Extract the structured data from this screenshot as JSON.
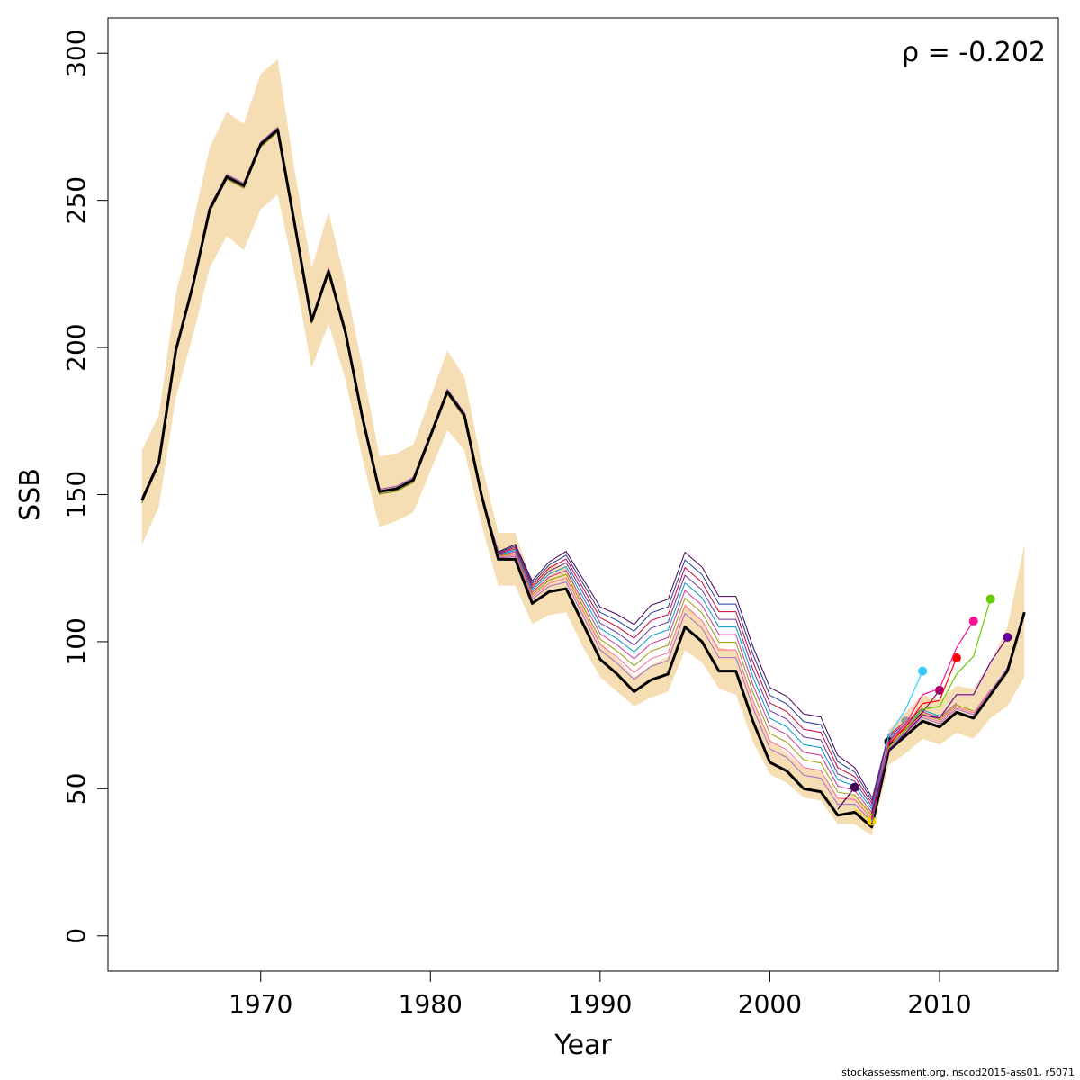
{
  "chart_data": {
    "type": "line",
    "xlabel": "Year",
    "ylabel": "SSB",
    "xlim": [
      1961,
      2017
    ],
    "ylim": [
      -12,
      312
    ],
    "x_ticks": [
      1970,
      1980,
      1990,
      2000,
      2010
    ],
    "y_ticks": [
      0,
      50,
      100,
      150,
      200,
      250,
      300
    ],
    "annotation": "ρ = -0.202",
    "band_color": "#f5deb3",
    "main_color": "#000000",
    "years": [
      1963,
      1964,
      1965,
      1966,
      1967,
      1968,
      1969,
      1970,
      1971,
      1972,
      1973,
      1974,
      1975,
      1976,
      1977,
      1978,
      1979,
      1980,
      1981,
      1982,
      1983,
      1984,
      1985,
      1986,
      1987,
      1988,
      1989,
      1990,
      1991,
      1992,
      1993,
      1994,
      1995,
      1996,
      1997,
      1998,
      1999,
      2000,
      2001,
      2002,
      2003,
      2004,
      2005,
      2006,
      2007,
      2008,
      2009,
      2010,
      2011,
      2012,
      2013,
      2014,
      2015
    ],
    "ssb": [
      148,
      161,
      199,
      221,
      247,
      258,
      255,
      269,
      274,
      242,
      209,
      226,
      205,
      176,
      151,
      152,
      155,
      170,
      185,
      177,
      150,
      128,
      128,
      113,
      117,
      118,
      106,
      94,
      89,
      83,
      87,
      89,
      105,
      100,
      90,
      90,
      73,
      59,
      56,
      50,
      49,
      41,
      42,
      37,
      63,
      68,
      73,
      71,
      76,
      74,
      82,
      90,
      110
    ],
    "upper": [
      165,
      177,
      218,
      242,
      268,
      280,
      276,
      293,
      298,
      260,
      227,
      246,
      222,
      193,
      163,
      164,
      167,
      183,
      199,
      190,
      161,
      137,
      137,
      120,
      126,
      126,
      113,
      100,
      94,
      88,
      92,
      95,
      113,
      107,
      98,
      97,
      80,
      67,
      62,
      57,
      56,
      47,
      48,
      42,
      70,
      76,
      82,
      80,
      85,
      84,
      93,
      105,
      133
    ],
    "lower": [
      133,
      146,
      183,
      204,
      227,
      238,
      233,
      247,
      252,
      225,
      193,
      208,
      189,
      162,
      139,
      141,
      144,
      158,
      172,
      165,
      140,
      119,
      119,
      106,
      109,
      110,
      98,
      88,
      83,
      78,
      81,
      83,
      97,
      93,
      84,
      82,
      66,
      55,
      52,
      47,
      46,
      38,
      38,
      34,
      58,
      62,
      67,
      65,
      69,
      67,
      74,
      78,
      88
    ],
    "peels": [
      {
        "color": "#440154",
        "points": [
          [
            2004,
            43
          ],
          [
            2005,
            50.5
          ]
        ]
      },
      {
        "color": "#ffcc00",
        "points": [
          [
            2005,
            43
          ],
          [
            2006,
            39
          ]
        ]
      },
      {
        "color": "#000000",
        "points": [
          [
            2006,
            38
          ],
          [
            2007,
            66
          ]
        ]
      },
      {
        "color": "#999999",
        "points": [
          [
            2006,
            38.5
          ],
          [
            2007,
            65
          ],
          [
            2008,
            73
          ]
        ]
      },
      {
        "color": "#33ccff",
        "points": [
          [
            2006,
            39
          ],
          [
            2007,
            68
          ],
          [
            2008,
            77
          ],
          [
            2009,
            90
          ]
        ]
      },
      {
        "color": "#990066",
        "points": [
          [
            2006,
            39.5
          ],
          [
            2007,
            64
          ],
          [
            2008,
            70
          ],
          [
            2009,
            76
          ],
          [
            2010,
            83.5
          ]
        ]
      },
      {
        "color": "#ff0000",
        "points": [
          [
            2006,
            40
          ],
          [
            2007,
            65
          ],
          [
            2008,
            71
          ],
          [
            2009,
            79
          ],
          [
            2010,
            80
          ],
          [
            2011,
            94.5
          ]
        ]
      },
      {
        "color": "#ff1493",
        "points": [
          [
            2006,
            40.5
          ],
          [
            2007,
            66
          ],
          [
            2008,
            72
          ],
          [
            2009,
            82
          ],
          [
            2010,
            84
          ],
          [
            2011,
            98
          ],
          [
            2012,
            107
          ]
        ]
      },
      {
        "color": "#66cc00",
        "points": [
          [
            2006,
            41
          ],
          [
            2007,
            64
          ],
          [
            2008,
            70
          ],
          [
            2009,
            77
          ],
          [
            2010,
            78
          ],
          [
            2011,
            89
          ],
          [
            2012,
            95
          ],
          [
            2013,
            114.5
          ]
        ]
      },
      {
        "color": "#660099",
        "points": [
          [
            2006,
            41.5
          ],
          [
            2007,
            63
          ],
          [
            2008,
            69
          ],
          [
            2009,
            75
          ],
          [
            2010,
            74
          ],
          [
            2011,
            82
          ],
          [
            2012,
            82
          ],
          [
            2013,
            93
          ],
          [
            2014,
            101.5
          ]
        ]
      }
    ],
    "history_colors": [
      "#440154",
      "#1f3a93",
      "#cc0033",
      "#663399",
      "#0099cc",
      "#cc3399",
      "#999900",
      "#ff6699",
      "#aa66cc"
    ]
  },
  "footer": "stockassessment.org, nscod2015-ass01, r5071"
}
